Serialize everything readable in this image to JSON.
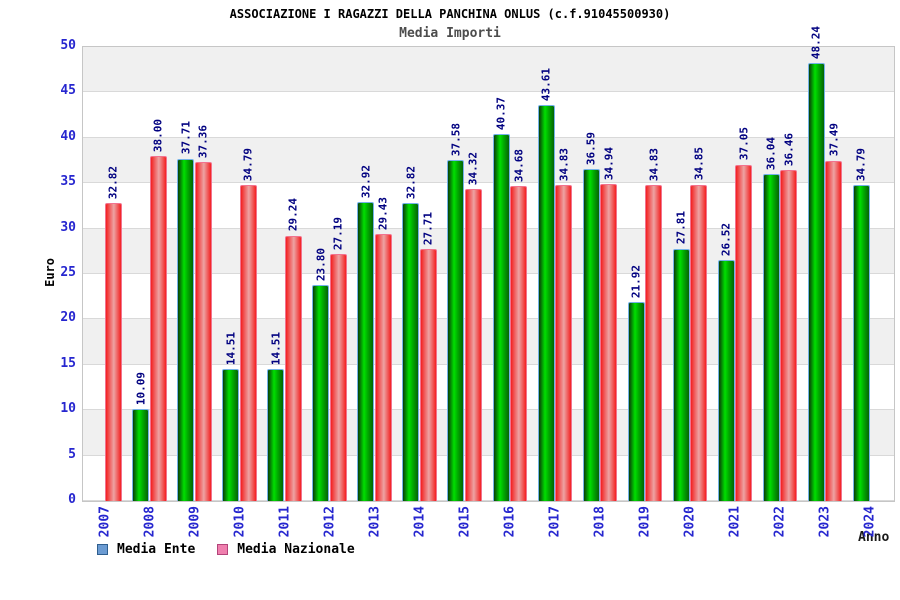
{
  "header": {
    "title": "ASSOCIAZIONE I RAGAZZI DELLA PANCHINA ONLUS (c.f.91045500930)",
    "subtitle": "Media Importi"
  },
  "axes": {
    "ylabel": "Euro",
    "xlabel": "Anno"
  },
  "legend": {
    "items": [
      {
        "label": "Media Ente",
        "swatch": "#6b9bd2",
        "swatch_border": "#2f5f8f"
      },
      {
        "label": "Media Nazionale",
        "swatch": "#ef7fae",
        "swatch_border": "#b3447a"
      }
    ]
  },
  "colors": {
    "green_gradient": [
      "#0a3c0a",
      "#00e000",
      "#00b000",
      "#056305"
    ],
    "green_border": "#74b2e8",
    "red_gradient": [
      "#f32020",
      "#eda3a3",
      "#f32020"
    ],
    "red_border": "#f2738f",
    "tick_label": "#2626cf",
    "value_label": "#000080",
    "band_gray": "#f0f0f0",
    "band_white": "#ffffff",
    "grid_line": "#d9d9d9"
  },
  "chart_data": {
    "type": "bar",
    "title": "Media Importi",
    "xlabel": "Anno",
    "ylabel": "Euro",
    "ylim": [
      0,
      50
    ],
    "ytick_step": 5,
    "grid": "horizontal-bands",
    "legend_position": "bottom-left",
    "categories": [
      "2007",
      "2008",
      "2009",
      "2010",
      "2011",
      "2012",
      "2013",
      "2014",
      "2015",
      "2016",
      "2017",
      "2018",
      "2019",
      "2020",
      "2021",
      "2022",
      "2023",
      "2024"
    ],
    "series": [
      {
        "name": "Media Ente",
        "values": [
          null,
          10.09,
          37.71,
          14.51,
          14.51,
          23.8,
          32.92,
          32.82,
          37.58,
          40.37,
          43.61,
          36.59,
          21.92,
          27.81,
          26.52,
          36.04,
          48.24,
          34.79
        ]
      },
      {
        "name": "Media Nazionale",
        "values": [
          32.82,
          38.0,
          37.36,
          34.79,
          29.24,
          27.19,
          29.43,
          27.71,
          34.32,
          34.68,
          34.83,
          34.94,
          34.83,
          34.85,
          37.05,
          36.46,
          37.49,
          null
        ]
      }
    ]
  }
}
